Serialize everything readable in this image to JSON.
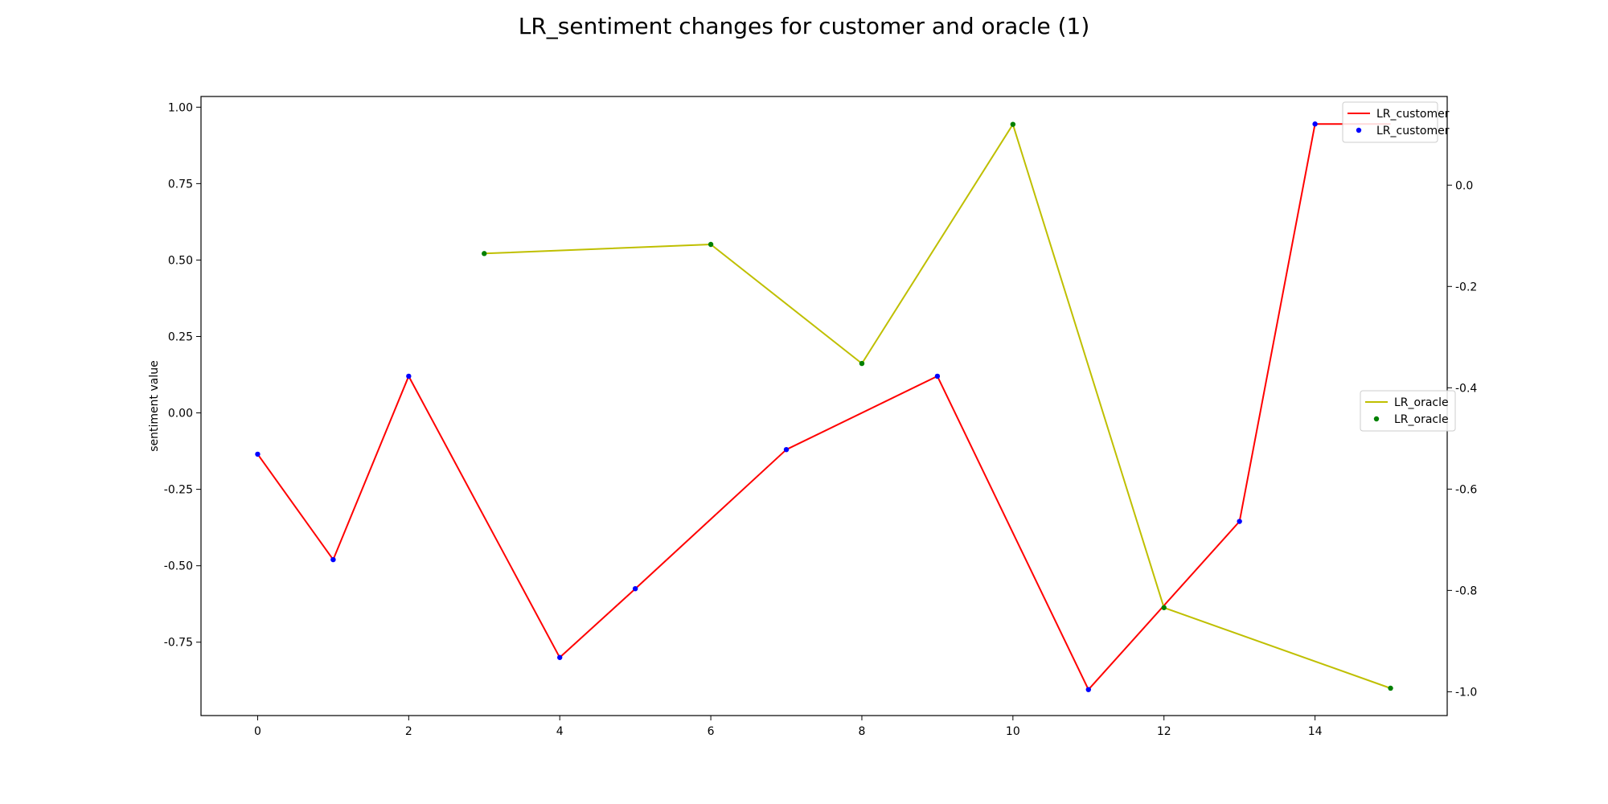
{
  "chart_data": {
    "type": "line",
    "title": "LR_sentiment changes for customer and oracle (1)",
    "xlabel": "",
    "ylabel": "sentiment value",
    "xlim": [
      -0.75,
      15.75
    ],
    "ylim_left": [
      -0.99,
      1.035
    ],
    "ylim_right": [
      -1.047,
      0.175
    ],
    "x_ticks": [
      0,
      2,
      4,
      6,
      8,
      10,
      12,
      14
    ],
    "y_ticks_left": [
      1.0,
      0.75,
      0.5,
      0.25,
      0.0,
      -0.25,
      -0.5,
      -0.75
    ],
    "y_ticks_left_labels": [
      "1.00",
      "0.75",
      "0.50",
      "0.25",
      "0.00",
      "-0.25",
      "-0.50",
      "-0.75"
    ],
    "y_ticks_right": [
      0.0,
      -0.2,
      -0.4,
      -0.6,
      -0.8,
      -1.0
    ],
    "y_ticks_right_labels": [
      "0.0",
      "-0.2",
      "-0.4",
      "-0.6",
      "-0.8",
      "-1.0"
    ],
    "grid": false,
    "series": [
      {
        "name": "LR_customer",
        "axis": "left",
        "line_color": "#ff0000",
        "marker_color": "#0000ff",
        "x": [
          0,
          1,
          2,
          4,
          5,
          7,
          9,
          11,
          13,
          14,
          15
        ],
        "y": [
          -0.135,
          -0.48,
          0.12,
          -0.8,
          -0.575,
          -0.12,
          0.12,
          -0.905,
          -0.355,
          0.945,
          0.945
        ],
        "marker_x": [
          0,
          1,
          2,
          4,
          5,
          7,
          9,
          11,
          13,
          14
        ],
        "marker_y": [
          -0.135,
          -0.48,
          0.12,
          -0.8,
          -0.575,
          -0.12,
          0.12,
          -0.905,
          -0.355,
          0.945
        ]
      },
      {
        "name": "LR_oracle",
        "axis": "right",
        "line_color": "#bfbf00",
        "marker_color": "#008000",
        "x": [
          3,
          6,
          8,
          10,
          12,
          15
        ],
        "y": [
          -0.135,
          -0.117,
          -0.352,
          0.12,
          -0.834,
          -0.993
        ],
        "marker_x": [
          3,
          6,
          8,
          10,
          12,
          15
        ],
        "marker_y": [
          -0.135,
          -0.117,
          -0.352,
          0.12,
          -0.834,
          -0.993
        ]
      }
    ],
    "legends": [
      {
        "placement": "top-right",
        "entries": [
          {
            "label": "LR_customer",
            "kind": "line",
            "color": "#ff0000"
          },
          {
            "label": "LR_customer",
            "kind": "marker",
            "color": "#0000ff"
          }
        ]
      },
      {
        "placement": "center-right",
        "entries": [
          {
            "label": "LR_oracle",
            "kind": "line",
            "color": "#bfbf00"
          },
          {
            "label": "LR_oracle",
            "kind": "marker",
            "color": "#008000"
          }
        ]
      }
    ]
  }
}
